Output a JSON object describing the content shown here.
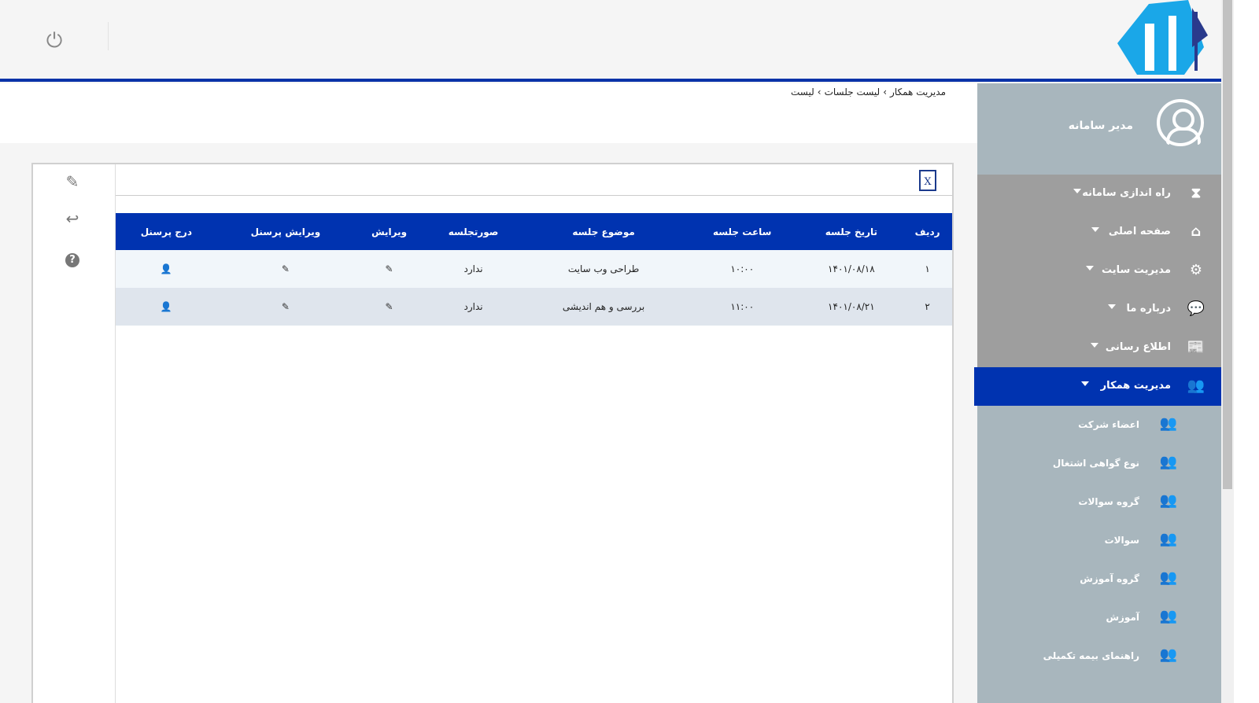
{
  "header": {
    "power_icon": "power-icon",
    "logo_alt": "بهبود پورتال"
  },
  "profile": {
    "name": "مدیر سامانه"
  },
  "menu": [
    {
      "label": "راه اندازی سامانه",
      "icon": "hourglass-icon"
    },
    {
      "label": "صفحه اصلی",
      "icon": "home-icon"
    },
    {
      "label": "مدیریت سایت",
      "icon": "gear-icon"
    },
    {
      "label": "درباره ما",
      "icon": "comments-icon"
    },
    {
      "label": "اطلاع رسانی",
      "icon": "newspaper-icon"
    },
    {
      "label": "مدیریت همکار",
      "icon": "users-icon",
      "active": true
    }
  ],
  "submenu": [
    "اعضاء شرکت",
    "نوع گواهی اشتغال",
    "گروه سوالات",
    "سوالات",
    "گروه آموزش",
    "آموزش",
    "راهنمای بیمه تکمیلی"
  ],
  "breadcrumb": [
    "مدیریت همکار",
    "لیست جلسات",
    "لیست"
  ],
  "table": {
    "headers": [
      "ردیف",
      "تاریخ جلسه",
      "ساعت جلسه",
      "موضوع جلسه",
      "صورتجلسه",
      "ویرایش",
      "ویرایش پرسنل",
      "درج پرسنل"
    ],
    "rows": [
      [
        "۱",
        "۱۴۰۱/۰۸/۱۸",
        "۱۰:۰۰",
        "طراحی وب سایت",
        "ندارد"
      ],
      [
        "۲",
        "۱۴۰۱/۰۸/۲۱",
        "۱۱:۰۰",
        "بررسی و هم اندیشی",
        "ندارد"
      ]
    ]
  },
  "colors": {
    "primary": "#0033b0",
    "sidebar": "#a8b6bd",
    "menu": "#9e9e9e"
  }
}
